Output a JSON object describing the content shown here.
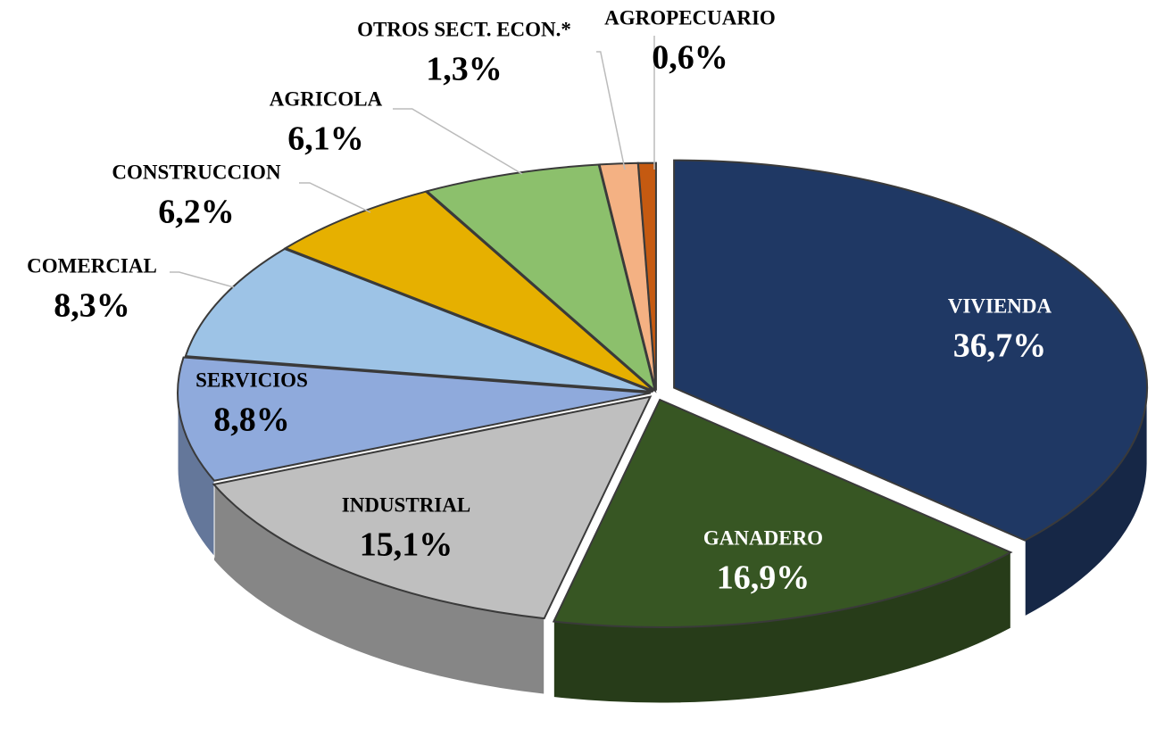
{
  "chart_data": {
    "type": "pie",
    "categories": [
      "VIVIENDA",
      "GANADERO",
      "INDUSTRIAL",
      "SERVICIOS",
      "COMERCIAL",
      "CONSTRUCCION",
      "AGRICOLA",
      "OTROS SECT. ECON.*",
      "AGROPECUARIO"
    ],
    "values": [
      36.7,
      16.9,
      15.1,
      8.8,
      8.3,
      6.2,
      6.1,
      1.3,
      0.6
    ],
    "value_labels": [
      "36,7%",
      "16,9%",
      "15,1%",
      "8,8%",
      "8,3%",
      "6,2%",
      "6,1%",
      "1,3%",
      "0,6%"
    ],
    "colors": [
      "#1f3864",
      "#375623",
      "#bfbfbf",
      "#8faadc",
      "#9dc3e6",
      "#e6b000",
      "#8cc06c",
      "#f4b183",
      "#c55a11"
    ]
  }
}
